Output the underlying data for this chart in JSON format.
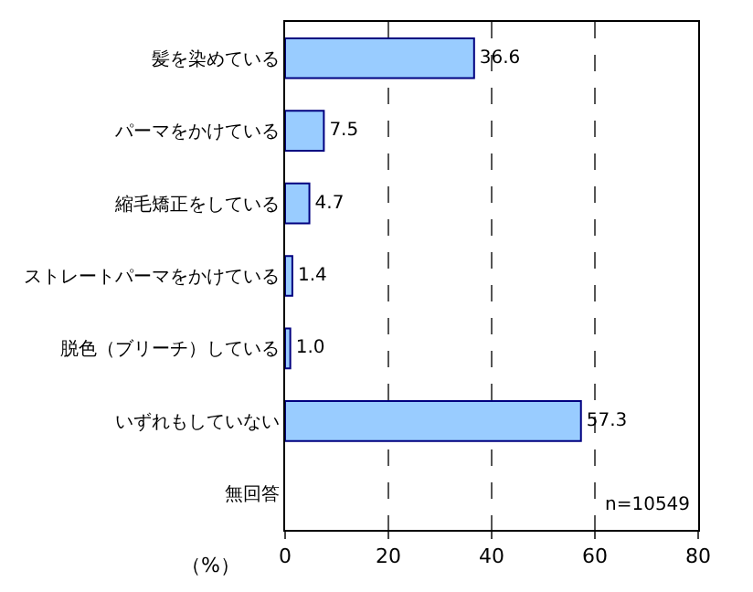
{
  "chart_data": {
    "type": "bar",
    "orientation": "horizontal",
    "categories": [
      "髪を染めている",
      "パーマをかけている",
      "縮毛矯正をしている",
      "ストレートパーマをかけている",
      "脱色（ブリーチ）している",
      "いずれもしていない",
      "無回答"
    ],
    "values": [
      36.6,
      7.5,
      4.7,
      1.4,
      1.0,
      57.3,
      null
    ],
    "color": "#99ccff",
    "value_labels": [
      "36.6",
      "7.5",
      "4.7",
      "1.4",
      "1.0",
      "57.3",
      null
    ],
    "xlabel": "（%）",
    "xlim": [
      0,
      80
    ],
    "xticks": [
      0,
      20,
      40,
      60,
      80
    ],
    "grid": "x",
    "annotations": [
      "n=10549"
    ]
  }
}
